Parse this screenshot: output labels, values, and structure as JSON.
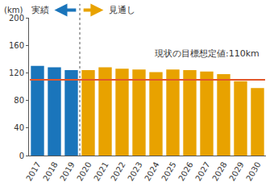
{
  "chart_data": {
    "type": "bar",
    "y_label": "(km)",
    "categories": [
      "2017",
      "2018",
      "2019",
      "2020",
      "2021",
      "2022",
      "2023",
      "2024",
      "2025",
      "2026",
      "2027",
      "2028",
      "2029",
      "2030"
    ],
    "values": [
      130,
      128,
      124,
      124,
      128,
      126,
      125,
      121,
      125,
      124,
      122,
      118,
      108,
      98
    ],
    "periods": [
      {
        "label": "実績",
        "color": "#1a75bb",
        "categories": [
          "2017",
          "2018",
          "2019"
        ]
      },
      {
        "label": "見通し",
        "color": "#e8a200",
        "categories": [
          "2020",
          "2021",
          "2022",
          "2023",
          "2024",
          "2025",
          "2026",
          "2027",
          "2028",
          "2029",
          "2030"
        ]
      }
    ],
    "reference_line": {
      "value": 110,
      "label": "現状の目標想定値:110km",
      "color": "#e2572b"
    },
    "ylim": [
      0,
      200
    ],
    "yticks": [
      0,
      40,
      80,
      120,
      160,
      200
    ],
    "grid": false
  }
}
